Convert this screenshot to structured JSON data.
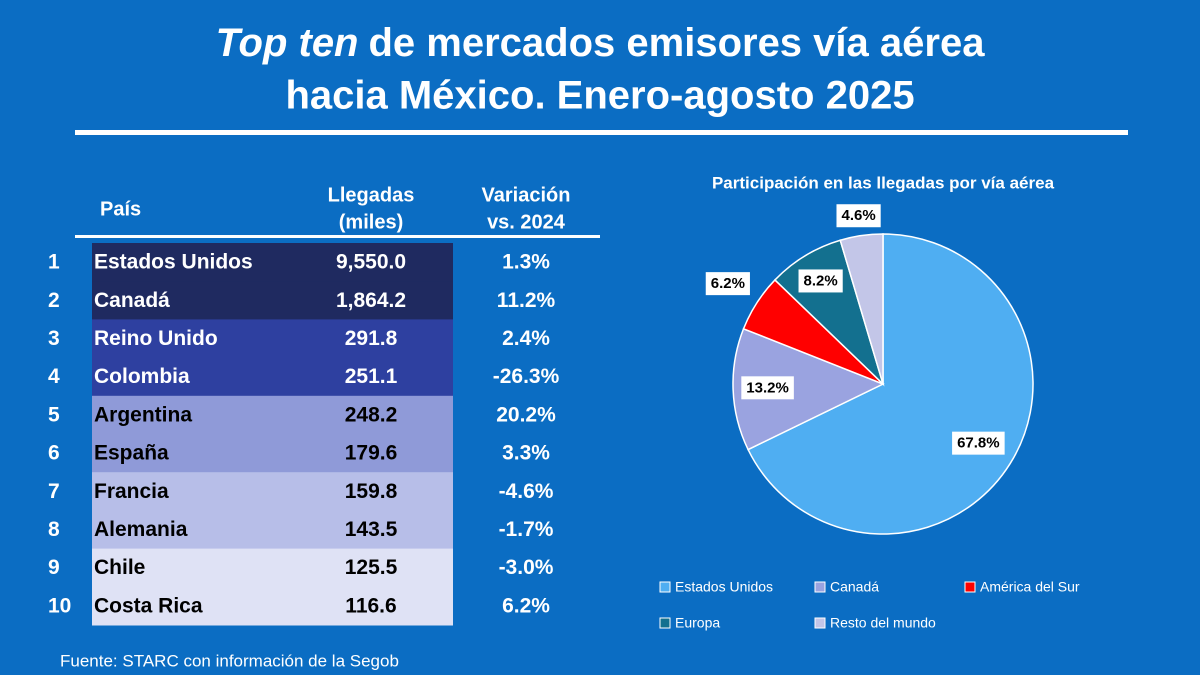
{
  "header": {
    "title_emphasis": "Top ten",
    "title_line1": "de mercados emisores vía aérea",
    "title_line2": "hacia México. Enero-agosto 2025"
  },
  "table": {
    "headers": [
      [
        "País"
      ],
      [
        "Llegadas",
        "(miles)"
      ],
      [
        "Variación",
        "vs. 2024"
      ]
    ],
    "band_colors": [
      "#1f2a60",
      "#1f2a60",
      "#2e40a0",
      "#2e40a0",
      "#8f9ad8",
      "#8f9ad8",
      "#b7bee8",
      "#b7bee8",
      "#dfe2f5",
      "#dfe2f5"
    ],
    "band_text_colors": [
      "#ffffff",
      "#ffffff",
      "#ffffff",
      "#ffffff",
      "#000000",
      "#000000",
      "#000000",
      "#000000",
      "#000000",
      "#000000"
    ],
    "rows": [
      [
        1,
        "Estados Unidos",
        "9,550.0",
        "1.3%"
      ],
      [
        2,
        "Canadá",
        "1,864.2",
        "11.2%"
      ],
      [
        3,
        "Reino Unido",
        "291.8",
        "2.4%"
      ],
      [
        4,
        "Colombia",
        "251.1",
        "-26.3%"
      ],
      [
        5,
        "Argentina",
        "248.2",
        "20.2%"
      ],
      [
        6,
        "España",
        "179.6",
        "3.3%"
      ],
      [
        7,
        "Francia",
        "159.8",
        "-4.6%"
      ],
      [
        8,
        "Alemania",
        "143.5",
        "-1.7%"
      ],
      [
        9,
        "Chile",
        "125.5",
        "-3.0%"
      ],
      [
        10,
        "Costa Rica",
        "116.6",
        "6.2%"
      ]
    ]
  },
  "chart_data": {
    "type": "pie",
    "title": "Participación en las llegadas por vía aérea",
    "categories": [
      "Estados Unidos",
      "Canadá",
      "América del Sur",
      "Europa",
      "Resto del mundo"
    ],
    "values": [
      67.8,
      13.2,
      6.2,
      8.2,
      4.6
    ],
    "value_labels": [
      "67.8%",
      "13.2%",
      "6.2%",
      "8.2%",
      "4.6%"
    ],
    "colors": [
      "#4faef2",
      "#9aa3e0",
      "#ff0000",
      "#13708f",
      "#c3c6e8"
    ],
    "legend": "bottom"
  },
  "source": "Fuente: STARC con información de la Segob"
}
